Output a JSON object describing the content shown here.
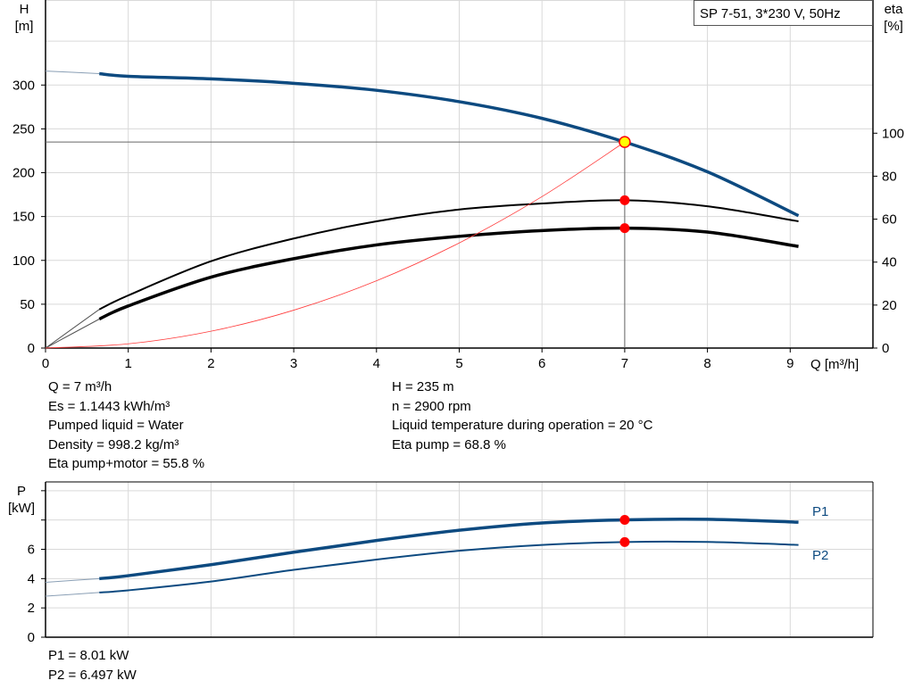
{
  "chart_data": [
    {
      "type": "line",
      "title": "SP 7-51, 3*230 V, 50Hz",
      "xlabel": "Q [m³/h]",
      "ylabel_left": [
        "H",
        "[m]"
      ],
      "ylabel_right": [
        "eta",
        "[%]"
      ],
      "xlim": [
        0,
        10
      ],
      "ylim_left": [
        0,
        397
      ],
      "ylim_right": [
        0,
        162
      ],
      "x_ticks": [
        0,
        1,
        2,
        3,
        4,
        5,
        6,
        7,
        8,
        9
      ],
      "y_ticks_left": [
        0,
        50,
        100,
        150,
        200,
        250,
        300
      ],
      "y_ticks_right": [
        0,
        20,
        40,
        60,
        80,
        100
      ],
      "grid": true,
      "colors": {
        "head": "#0d4a80",
        "eta": "#000000",
        "system": "#ff3b3b",
        "duty_point": "#ffff00",
        "marker": "#ff0000"
      },
      "series": [
        {
          "axis": "left",
          "color": "#0d4a80",
          "x": [
            0,
            0.65,
            1,
            2,
            3,
            4,
            5,
            6,
            7,
            8,
            9.1
          ],
          "y": [
            316,
            313,
            310,
            307,
            302,
            294,
            281,
            262,
            235,
            201,
            151
          ]
        },
        {
          "axis": "right",
          "color": "#000000",
          "x": [
            0,
            0.65,
            1,
            2,
            3,
            4,
            5,
            6,
            7,
            8,
            9.1
          ],
          "y": [
            0,
            18,
            24.5,
            40.4,
            51,
            59,
            64.5,
            67.3,
            68.8,
            66,
            59
          ]
        },
        {
          "axis": "right",
          "color": "#000000",
          "x": [
            0,
            0.65,
            1,
            2,
            3,
            4,
            5,
            6,
            7,
            8,
            9.1
          ],
          "y": [
            0,
            13.5,
            19.6,
            33,
            41.6,
            48,
            52,
            54.7,
            55.8,
            54,
            47.3
          ]
        },
        {
          "axis": "left",
          "color": "#ff3b3b",
          "x": [
            0,
            1,
            2,
            3,
            4,
            5,
            6,
            7
          ],
          "y": [
            0,
            4.8,
            19.2,
            43.2,
            76.7,
            119.9,
            172.7,
            235
          ]
        }
      ],
      "duty_point": {
        "Q": 7,
        "H": 235,
        "eta_pump": 68.8,
        "eta_pump_motor": 55.8
      }
    },
    {
      "type": "line",
      "ylabel": [
        "P",
        "[kW]"
      ],
      "xlim": [
        0,
        10
      ],
      "ylim": [
        0,
        10.6
      ],
      "x_ticks": [
        0,
        1,
        2,
        3,
        4,
        5,
        6,
        7,
        8,
        9
      ],
      "y_ticks": [
        0,
        2,
        4,
        6,
        8,
        10
      ],
      "y_tick_labels": [
        "0",
        "2",
        "4",
        "6",
        "",
        ""
      ],
      "grid": true,
      "series": [
        {
          "name": "P1",
          "color": "#0d4a80",
          "x": [
            0,
            0.65,
            1,
            2,
            3,
            4,
            5,
            6,
            7,
            8,
            9.1
          ],
          "y": [
            3.75,
            4.0,
            4.2,
            4.95,
            5.8,
            6.6,
            7.3,
            7.8,
            8.01,
            8.05,
            7.85
          ]
        },
        {
          "name": "P2",
          "color": "#0d4a80",
          "x": [
            0,
            0.65,
            1,
            2,
            3,
            4,
            5,
            6,
            7,
            8,
            9.1
          ],
          "y": [
            2.8,
            3.05,
            3.2,
            3.8,
            4.6,
            5.3,
            5.9,
            6.3,
            6.497,
            6.5,
            6.3
          ]
        }
      ],
      "duty_point": {
        "Q": 7,
        "P1": 8.01,
        "P2": 6.497
      }
    }
  ],
  "info_left": [
    "Q = 7 m³/h",
    "Es = 1.1443 kWh/m³",
    "Pumped liquid = Water",
    "Density = 998.2 kg/m³",
    "Eta pump+motor = 55.8 %"
  ],
  "info_right": [
    "H = 235 m",
    "n = 2900 rpm",
    "Liquid temperature during operation = 20 °C",
    "Eta pump = 68.8 %"
  ],
  "info_power": [
    "P1 = 8.01 kW",
    "P2 = 6.497 kW"
  ]
}
